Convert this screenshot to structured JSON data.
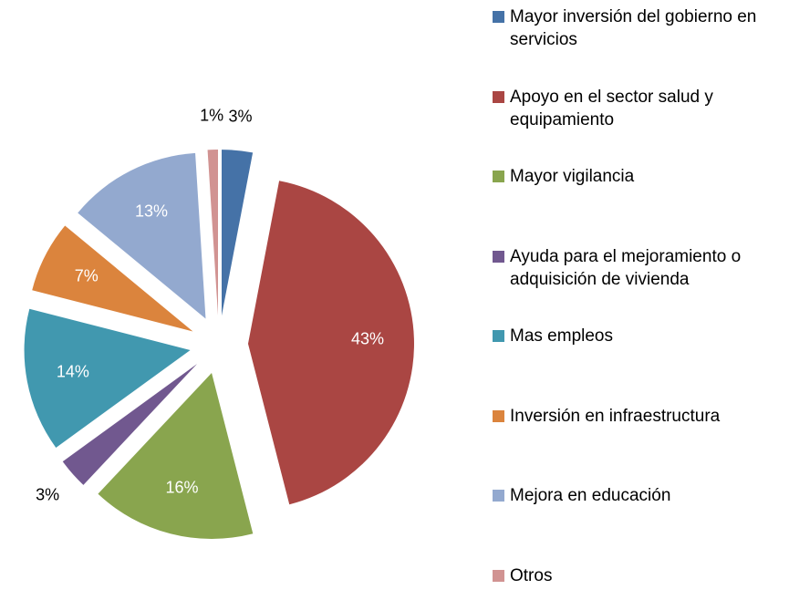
{
  "chart_data": {
    "type": "pie",
    "categories": [
      "Mayor inversión del gobierno en servicios",
      "Apoyo en el sector salud y equipamiento",
      "Mayor vigilancia",
      "Ayuda para el mejoramiento o adquisición de vivienda",
      "Mas empleos",
      "Inversión en infraestructura",
      "Mejora en educación",
      "Otros"
    ],
    "values": [
      3,
      43,
      16,
      3,
      14,
      7,
      13,
      1
    ],
    "value_labels": [
      "3%",
      "43%",
      "16%",
      "3%",
      "14%",
      "7%",
      "13%",
      "1%"
    ],
    "colors": [
      "#4572a7",
      "#aa4643",
      "#89a54e",
      "#71588f",
      "#4198af",
      "#db843d",
      "#93a9cf",
      "#d19392"
    ],
    "legend": "right"
  }
}
